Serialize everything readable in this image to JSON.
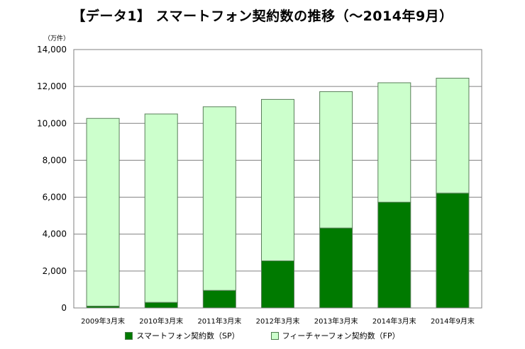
{
  "title": "【データ1】 スマートフォン契約数の推移（～2014年9月）",
  "unit_label": "（万件）",
  "colors": {
    "sp": "#007a00",
    "fp": "#ccffcc",
    "grid": "#808080",
    "border": "#5a7f5a"
  },
  "chart_data": {
    "type": "bar",
    "stacked": true,
    "title": "【データ1】 スマートフォン契約数の推移（～2014年9月）",
    "ylabel": "（万件）",
    "xlabel": "",
    "categories": [
      "2009年3月末",
      "2010年3月末",
      "2011年3月末",
      "2012年3月末",
      "2013年3月末",
      "2014年3月末",
      "2014年9月末"
    ],
    "series": [
      {
        "name": "スマートフォン契約数（SP）",
        "values": [
          100,
          300,
          950,
          2550,
          4330,
          5730,
          6220
        ]
      },
      {
        "name": "フィーチャーフォン契約数（FP）",
        "values": [
          10170,
          10210,
          9950,
          8750,
          7390,
          6470,
          6230
        ]
      }
    ],
    "ylim": [
      0,
      14000
    ],
    "yticks": [
      0,
      2000,
      4000,
      6000,
      8000,
      10000,
      12000,
      14000
    ],
    "ytick_labels": [
      "0",
      "2,000",
      "4,000",
      "6,000",
      "8,000",
      "10,000",
      "12,000",
      "14,000"
    ],
    "grid": true,
    "legend_position": "bottom"
  }
}
